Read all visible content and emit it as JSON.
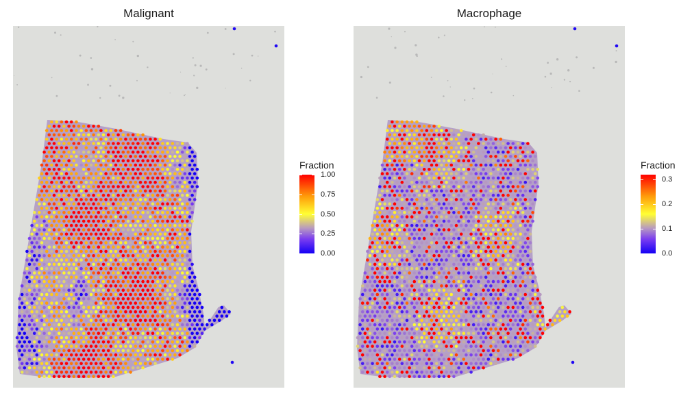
{
  "chart_data": [
    {
      "type": "scatter",
      "title": "Malignant",
      "legend": {
        "title": "Fraction",
        "ticks": [
          "0.00",
          "0.25",
          "0.50",
          "0.75",
          "1.00"
        ],
        "range": [
          0,
          1
        ],
        "position": "right"
      },
      "colorscale": [
        "#1400f5",
        "#7a3cf0",
        "#b79ac0",
        "#ffff33",
        "#ff9e0a",
        "#ff0000"
      ],
      "grid": false,
      "pattern": "high fraction (orange/red) across central tissue, low (blue) near right and lower-left edges"
    },
    {
      "type": "scatter",
      "title": "Macrophage",
      "legend": {
        "title": "Fraction",
        "ticks": [
          "0.0",
          "0.1",
          "0.2",
          "0.3"
        ],
        "range": [
          0,
          0.32
        ],
        "position": "right"
      },
      "colorscale": [
        "#1400f5",
        "#7a3cf0",
        "#b79ac0",
        "#ffff33",
        "#ff9e0a",
        "#ff0000"
      ],
      "grid": false,
      "pattern": "mostly low fraction (blue) with scattered higher spots in upper-left and lower regions"
    }
  ]
}
